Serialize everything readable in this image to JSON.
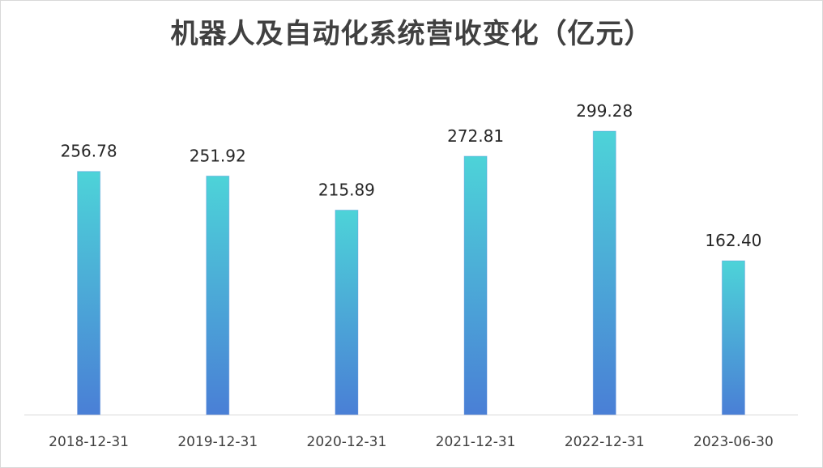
{
  "chart_data": {
    "type": "bar",
    "title": "机器人及自动化系统营收变化（亿元）",
    "categories": [
      "2018-12-31",
      "2019-12-31",
      "2020-12-31",
      "2021-12-31",
      "2022-12-31",
      "2023-06-30"
    ],
    "values": [
      256.78,
      251.92,
      215.89,
      272.81,
      299.28,
      162.4
    ],
    "value_labels": [
      "256.78",
      "251.92",
      "215.89",
      "272.81",
      "299.28",
      "162.40"
    ],
    "xlabel": "",
    "ylabel": "",
    "ylim": [
      0,
      330
    ],
    "grid": false,
    "legend": "none",
    "colors": {
      "bar_top": "#4dd3d8",
      "bar_bottom": "#4a7fd6",
      "axis": "#d9d9d9"
    }
  }
}
